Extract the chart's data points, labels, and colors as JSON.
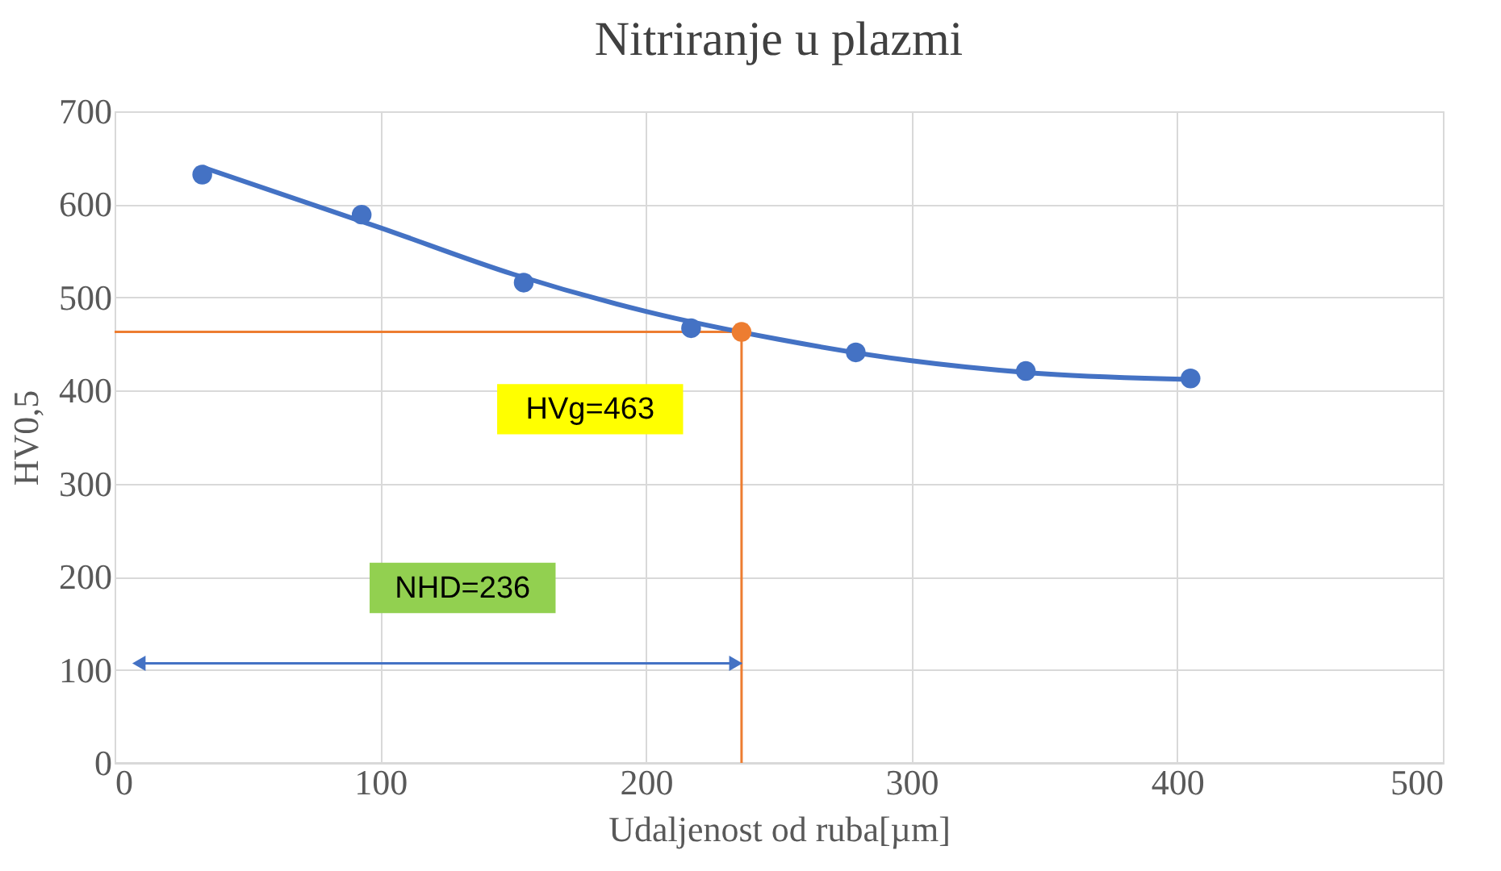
{
  "chart_data": {
    "type": "scatter",
    "title": "Nitriranje u plazmi",
    "xlabel": "Udaljenost od ruba[µm]",
    "ylabel": "HV0,5",
    "xlim": [
      0,
      500
    ],
    "xticks": [
      0,
      100,
      200,
      300,
      400,
      500
    ],
    "ylim": [
      0,
      700
    ],
    "yticks": [
      0,
      100,
      200,
      300,
      400,
      500,
      600,
      700
    ],
    "grid": true,
    "marker": "circle",
    "series": [
      {
        "type": "line",
        "color": "#4472c4",
        "marker": "none",
        "x": [
          33,
          100,
          150,
          200,
          250,
          300,
          350,
          405
        ],
        "values": [
          640,
          575,
          525,
          485,
          455,
          432,
          418,
          412
        ]
      },
      {
        "color": "#4472c4",
        "x": [
          33,
          93,
          154,
          217,
          279,
          343,
          405
        ],
        "values": [
          632,
          589,
          516,
          467,
          441,
          421,
          413
        ]
      },
      {
        "type": "scatter",
        "color": "#ed7d31",
        "x": [
          236
        ],
        "values": [
          463
        ]
      }
    ],
    "ref_lines": [
      {
        "axis": "y",
        "value": 463,
        "color": "#ed7d31"
      },
      {
        "axis": "x",
        "value": 236,
        "color": "#ed7d31"
      }
    ],
    "annotations": [
      {
        "text": "HVg=463",
        "x": 179,
        "y": 380
      },
      {
        "text": "NHD=236",
        "x": 131,
        "y": 188
      }
    ]
  }
}
